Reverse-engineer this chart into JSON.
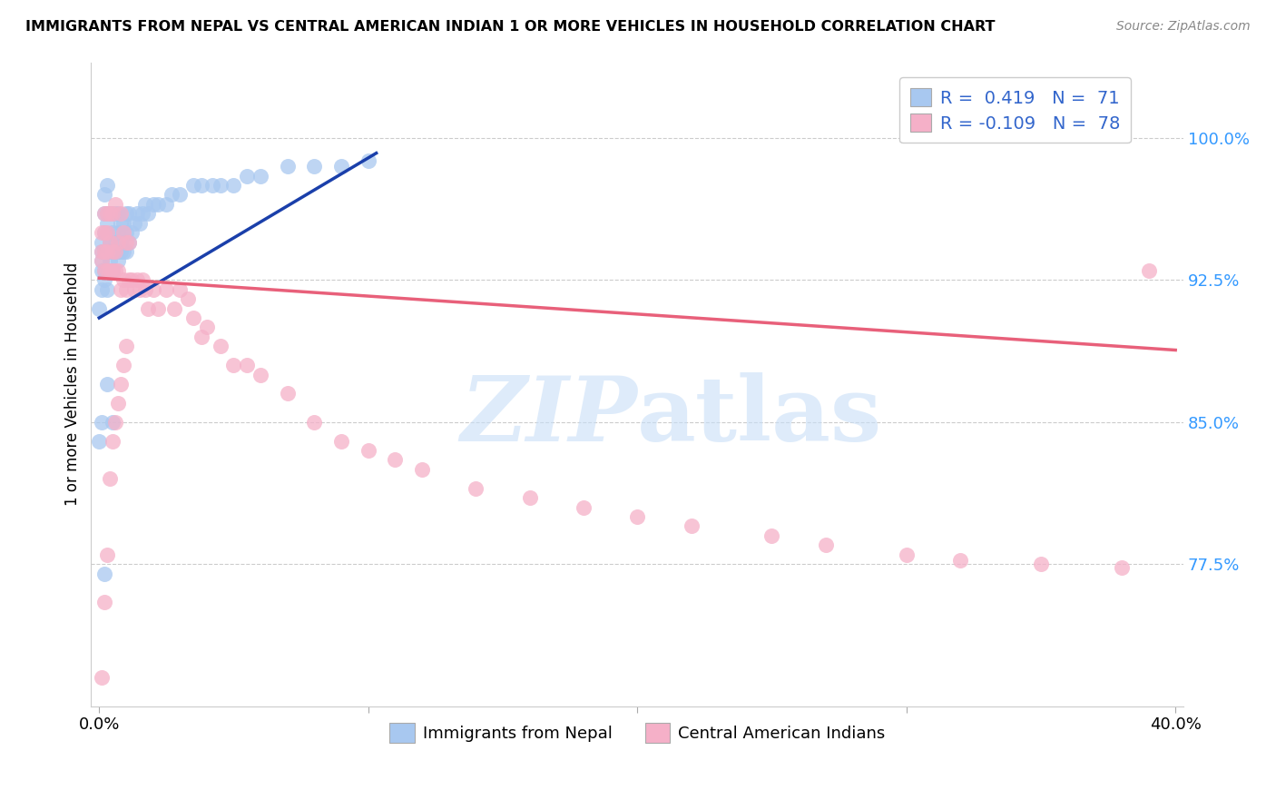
{
  "title": "IMMIGRANTS FROM NEPAL VS CENTRAL AMERICAN INDIAN 1 OR MORE VEHICLES IN HOUSEHOLD CORRELATION CHART",
  "source": "Source: ZipAtlas.com",
  "y_axis_label": "1 or more Vehicles in Household",
  "legend_label1": "Immigrants from Nepal",
  "legend_label2": "Central American Indians",
  "R1": 0.419,
  "N1": 71,
  "R2": -0.109,
  "N2": 78,
  "color_blue": "#A8C8F0",
  "color_pink": "#F5B0C8",
  "color_line_blue": "#1A3FAA",
  "color_line_pink": "#E8607A",
  "xlim": [
    -0.003,
    0.403
  ],
  "ylim": [
    0.7,
    1.04
  ],
  "yticks": [
    0.775,
    0.85,
    0.925,
    1.0
  ],
  "ytick_labels": [
    "77.5%",
    "85.0%",
    "92.5%",
    "100.0%"
  ],
  "nepal_x": [
    0.001,
    0.001,
    0.001,
    0.001,
    0.001,
    0.002,
    0.002,
    0.002,
    0.002,
    0.002,
    0.002,
    0.003,
    0.003,
    0.003,
    0.003,
    0.003,
    0.003,
    0.004,
    0.004,
    0.004,
    0.004,
    0.005,
    0.005,
    0.005,
    0.005,
    0.006,
    0.006,
    0.006,
    0.007,
    0.007,
    0.007,
    0.007,
    0.008,
    0.008,
    0.008,
    0.009,
    0.009,
    0.01,
    0.01,
    0.01,
    0.011,
    0.011,
    0.012,
    0.013,
    0.014,
    0.015,
    0.016,
    0.017,
    0.018,
    0.02,
    0.022,
    0.025,
    0.027,
    0.03,
    0.035,
    0.038,
    0.042,
    0.045,
    0.05,
    0.055,
    0.06,
    0.07,
    0.08,
    0.09,
    0.1,
    0.0,
    0.0,
    0.001,
    0.002,
    0.003,
    0.005
  ],
  "nepal_y": [
    0.92,
    0.93,
    0.935,
    0.94,
    0.945,
    0.925,
    0.93,
    0.94,
    0.95,
    0.96,
    0.97,
    0.92,
    0.93,
    0.94,
    0.955,
    0.96,
    0.975,
    0.935,
    0.94,
    0.945,
    0.96,
    0.93,
    0.94,
    0.95,
    0.96,
    0.94,
    0.945,
    0.96,
    0.935,
    0.94,
    0.95,
    0.96,
    0.94,
    0.945,
    0.955,
    0.94,
    0.955,
    0.94,
    0.95,
    0.96,
    0.945,
    0.96,
    0.95,
    0.955,
    0.96,
    0.955,
    0.96,
    0.965,
    0.96,
    0.965,
    0.965,
    0.965,
    0.97,
    0.97,
    0.975,
    0.975,
    0.975,
    0.975,
    0.975,
    0.98,
    0.98,
    0.985,
    0.985,
    0.985,
    0.988,
    0.91,
    0.84,
    0.85,
    0.77,
    0.87,
    0.85
  ],
  "central_x": [
    0.001,
    0.001,
    0.001,
    0.002,
    0.002,
    0.002,
    0.002,
    0.003,
    0.003,
    0.003,
    0.003,
    0.004,
    0.004,
    0.004,
    0.005,
    0.005,
    0.005,
    0.006,
    0.006,
    0.006,
    0.007,
    0.007,
    0.008,
    0.008,
    0.009,
    0.009,
    0.01,
    0.01,
    0.011,
    0.011,
    0.012,
    0.013,
    0.014,
    0.015,
    0.016,
    0.017,
    0.018,
    0.02,
    0.022,
    0.025,
    0.028,
    0.03,
    0.033,
    0.035,
    0.038,
    0.04,
    0.045,
    0.05,
    0.055,
    0.06,
    0.07,
    0.08,
    0.09,
    0.1,
    0.11,
    0.12,
    0.14,
    0.16,
    0.18,
    0.2,
    0.22,
    0.25,
    0.27,
    0.3,
    0.32,
    0.35,
    0.38,
    0.39,
    0.001,
    0.002,
    0.003,
    0.004,
    0.005,
    0.006,
    0.007,
    0.008,
    0.009,
    0.01
  ],
  "central_y": [
    0.935,
    0.94,
    0.95,
    0.93,
    0.94,
    0.95,
    0.96,
    0.93,
    0.94,
    0.95,
    0.96,
    0.93,
    0.945,
    0.96,
    0.93,
    0.94,
    0.96,
    0.93,
    0.94,
    0.965,
    0.93,
    0.945,
    0.92,
    0.96,
    0.925,
    0.95,
    0.92,
    0.945,
    0.925,
    0.945,
    0.925,
    0.92,
    0.925,
    0.92,
    0.925,
    0.92,
    0.91,
    0.92,
    0.91,
    0.92,
    0.91,
    0.92,
    0.915,
    0.905,
    0.895,
    0.9,
    0.89,
    0.88,
    0.88,
    0.875,
    0.865,
    0.85,
    0.84,
    0.835,
    0.83,
    0.825,
    0.815,
    0.81,
    0.805,
    0.8,
    0.795,
    0.79,
    0.785,
    0.78,
    0.777,
    0.775,
    0.773,
    0.93,
    0.715,
    0.755,
    0.78,
    0.82,
    0.84,
    0.85,
    0.86,
    0.87,
    0.88,
    0.89
  ]
}
